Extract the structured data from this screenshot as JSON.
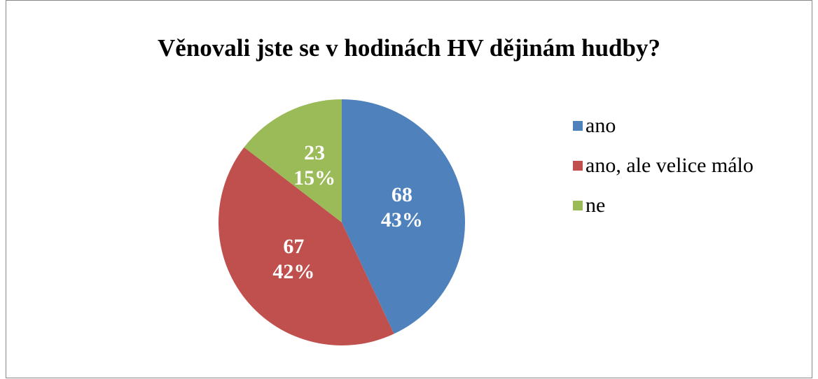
{
  "chart_data": {
    "type": "pie",
    "title": "Věnovali jste se v hodinách HV dějinám hudby?",
    "categories": [
      "ano",
      "ano, ale velice málo",
      "ne"
    ],
    "values": [
      68,
      67,
      23
    ],
    "percent_labels": [
      "43%",
      "42%",
      "15%"
    ],
    "colors": [
      "#4f81bd",
      "#c0504d",
      "#9bbb59"
    ],
    "legend": "right"
  }
}
